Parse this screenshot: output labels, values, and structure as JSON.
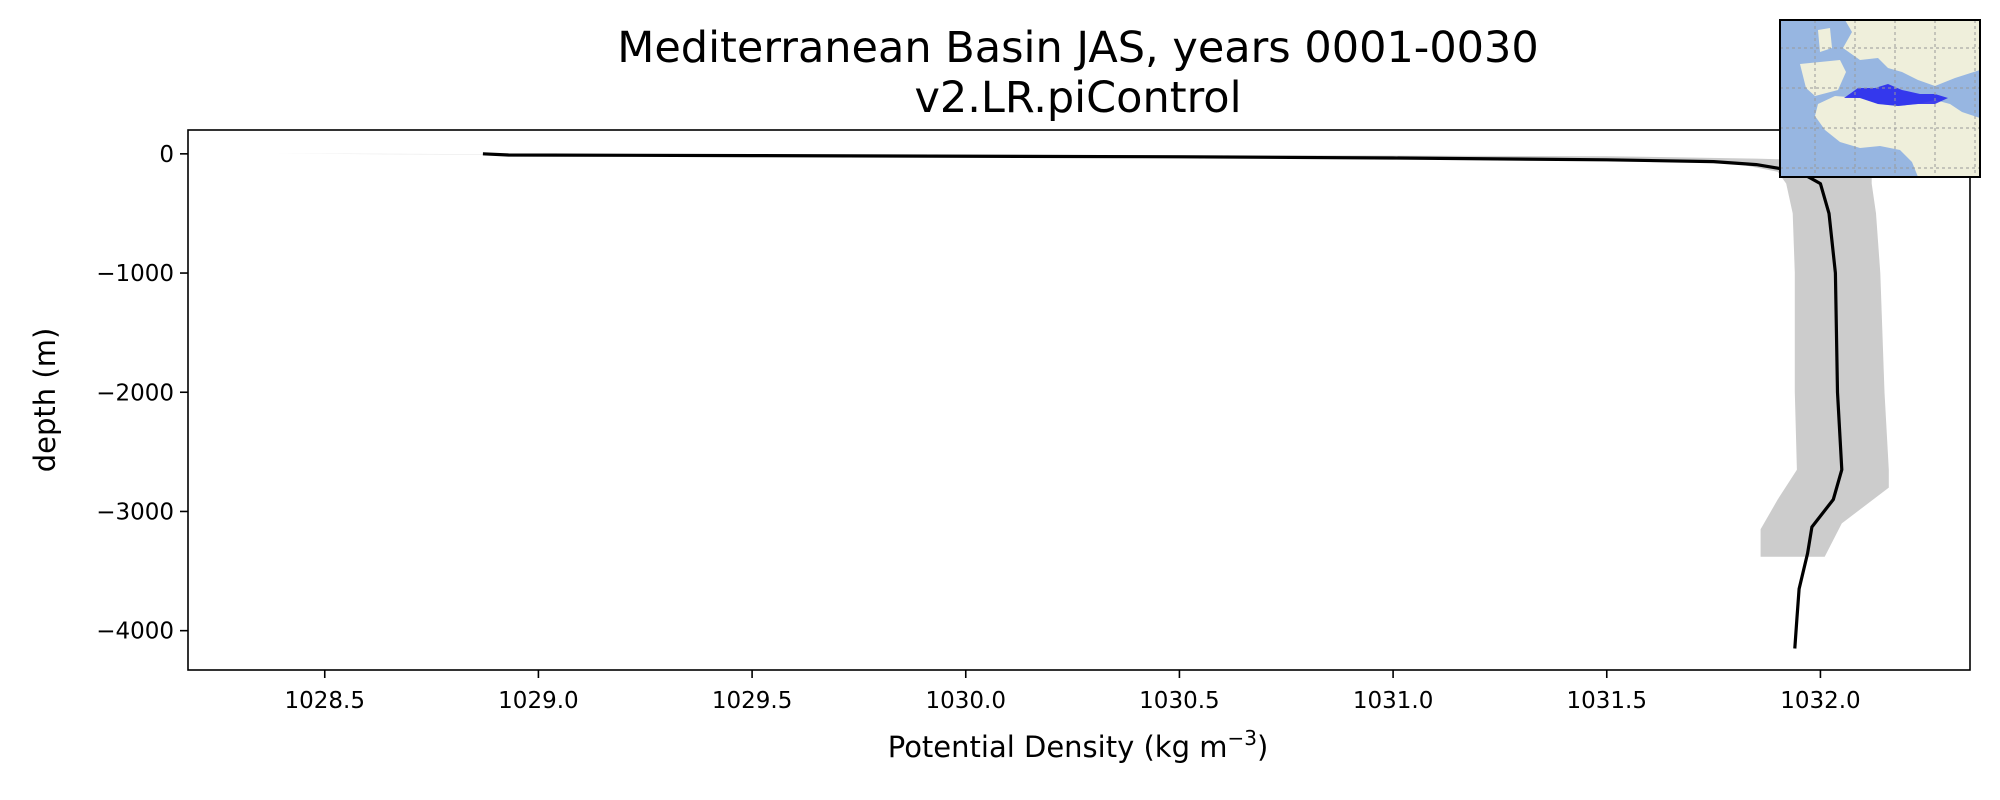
{
  "chart_data": {
    "type": "line",
    "title": "Mediterranean Basin JAS, years 0001-0030",
    "subtitle": "v2.LR.piControl",
    "xlabel": "Potential Density (kg m",
    "xlabel_superscript": "−3",
    "xlabel_suffix": ")",
    "ylabel": "depth (m)",
    "xlim": [
      1028.18,
      1032.35
    ],
    "ylim": [
      -4330,
      200
    ],
    "x_ticks": [
      1028.5,
      1029.0,
      1029.5,
      1030.0,
      1030.5,
      1031.0,
      1031.5,
      1032.0
    ],
    "x_tick_labels": [
      "1028.5",
      "1029.0",
      "1029.5",
      "1030.0",
      "1030.5",
      "1031.0",
      "1031.5",
      "1032.0"
    ],
    "y_ticks": [
      0,
      -1000,
      -2000,
      -3000,
      -4000
    ],
    "y_tick_labels": [
      "0",
      "−1000",
      "−2000",
      "−3000",
      "−4000"
    ],
    "grid": false,
    "legend": "none",
    "series": [
      {
        "style": "mean-profile",
        "color": "#000000",
        "points": [
          [
            1028.87,
            0
          ],
          [
            1028.93,
            -10
          ],
          [
            1029.5,
            -15
          ],
          [
            1030.5,
            -25
          ],
          [
            1031.0,
            -35
          ],
          [
            1031.5,
            -50
          ],
          [
            1031.75,
            -65
          ],
          [
            1031.85,
            -90
          ],
          [
            1031.95,
            -150
          ],
          [
            1032.0,
            -250
          ],
          [
            1032.02,
            -500
          ],
          [
            1032.035,
            -1000
          ],
          [
            1032.04,
            -2000
          ],
          [
            1032.05,
            -2650
          ],
          [
            1032.03,
            -2900
          ],
          [
            1031.98,
            -3130
          ],
          [
            1031.97,
            -3350
          ],
          [
            1031.95,
            -3650
          ],
          [
            1031.945,
            -3900
          ],
          [
            1031.94,
            -4150
          ]
        ]
      }
    ],
    "spread_band": {
      "color": "#cccccc",
      "upper": [
        [
          1028.38,
          0
        ],
        [
          1029.5,
          -10
        ],
        [
          1030.5,
          -20
        ],
        [
          1031.5,
          -40
        ],
        [
          1031.8,
          -80
        ],
        [
          1031.9,
          -150
        ],
        [
          1031.92,
          -250
        ],
        [
          1031.935,
          -500
        ],
        [
          1031.94,
          -1000
        ],
        [
          1031.94,
          -2000
        ],
        [
          1031.945,
          -2650
        ],
        [
          1031.9,
          -2900
        ],
        [
          1031.86,
          -3150
        ],
        [
          1031.86,
          -3380
        ]
      ],
      "lower": [
        [
          1028.38,
          0
        ],
        [
          1029.5,
          -5
        ],
        [
          1030.5,
          -10
        ],
        [
          1031.5,
          -20
        ],
        [
          1031.85,
          -40
        ],
        [
          1032.05,
          -60
        ],
        [
          1032.12,
          -100
        ],
        [
          1032.12,
          -250
        ],
        [
          1032.13,
          -500
        ],
        [
          1032.14,
          -1000
        ],
        [
          1032.15,
          -2000
        ],
        [
          1032.16,
          -2650
        ],
        [
          1032.16,
          -2800
        ],
        [
          1032.05,
          -3100
        ],
        [
          1032.01,
          -3380
        ]
      ]
    },
    "inset_map": {
      "region": "Mediterranean Sea",
      "ocean_color": "#97b6e1",
      "land_color": "#efefdb",
      "highlight_color": "#2222ee",
      "gridline_color": "#999999"
    }
  }
}
